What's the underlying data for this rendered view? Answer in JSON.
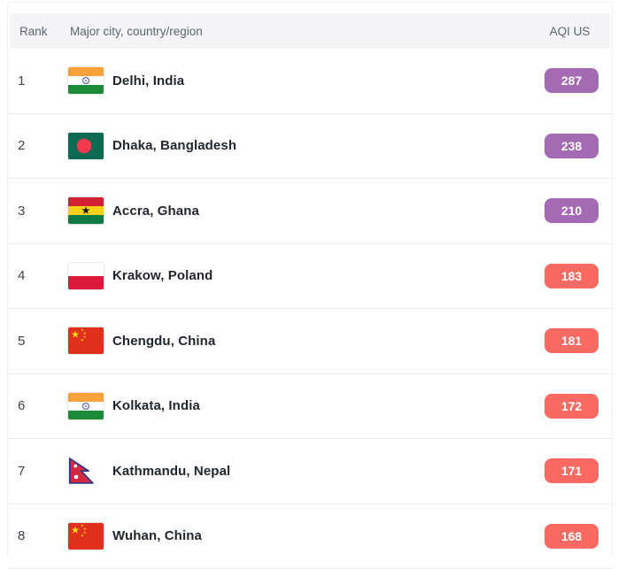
{
  "table": {
    "headers": {
      "rank": "Rank",
      "city": "Major city, country/region",
      "aqi": "AQI US"
    }
  },
  "aqi_colors": {
    "very_unhealthy": "#a46ab4",
    "unhealthy": "#fa6a62"
  },
  "rows": [
    {
      "rank": "1",
      "city": "Delhi, India",
      "flag": "flag-india",
      "aqi": "287",
      "level": "very_unhealthy"
    },
    {
      "rank": "2",
      "city": "Dhaka, Bangladesh",
      "flag": "flag-bangladesh",
      "aqi": "238",
      "level": "very_unhealthy"
    },
    {
      "rank": "3",
      "city": "Accra, Ghana",
      "flag": "flag-ghana",
      "aqi": "210",
      "level": "very_unhealthy"
    },
    {
      "rank": "4",
      "city": "Krakow, Poland",
      "flag": "flag-poland",
      "aqi": "183",
      "level": "unhealthy"
    },
    {
      "rank": "5",
      "city": "Chengdu, China",
      "flag": "flag-china",
      "aqi": "181",
      "level": "unhealthy"
    },
    {
      "rank": "6",
      "city": "Kolkata, India",
      "flag": "flag-india",
      "aqi": "172",
      "level": "unhealthy"
    },
    {
      "rank": "7",
      "city": "Kathmandu, Nepal",
      "flag": "flag-nepal",
      "aqi": "171",
      "level": "unhealthy"
    },
    {
      "rank": "8",
      "city": "Wuhan, China",
      "flag": "flag-china",
      "aqi": "168",
      "level": "unhealthy"
    }
  ]
}
